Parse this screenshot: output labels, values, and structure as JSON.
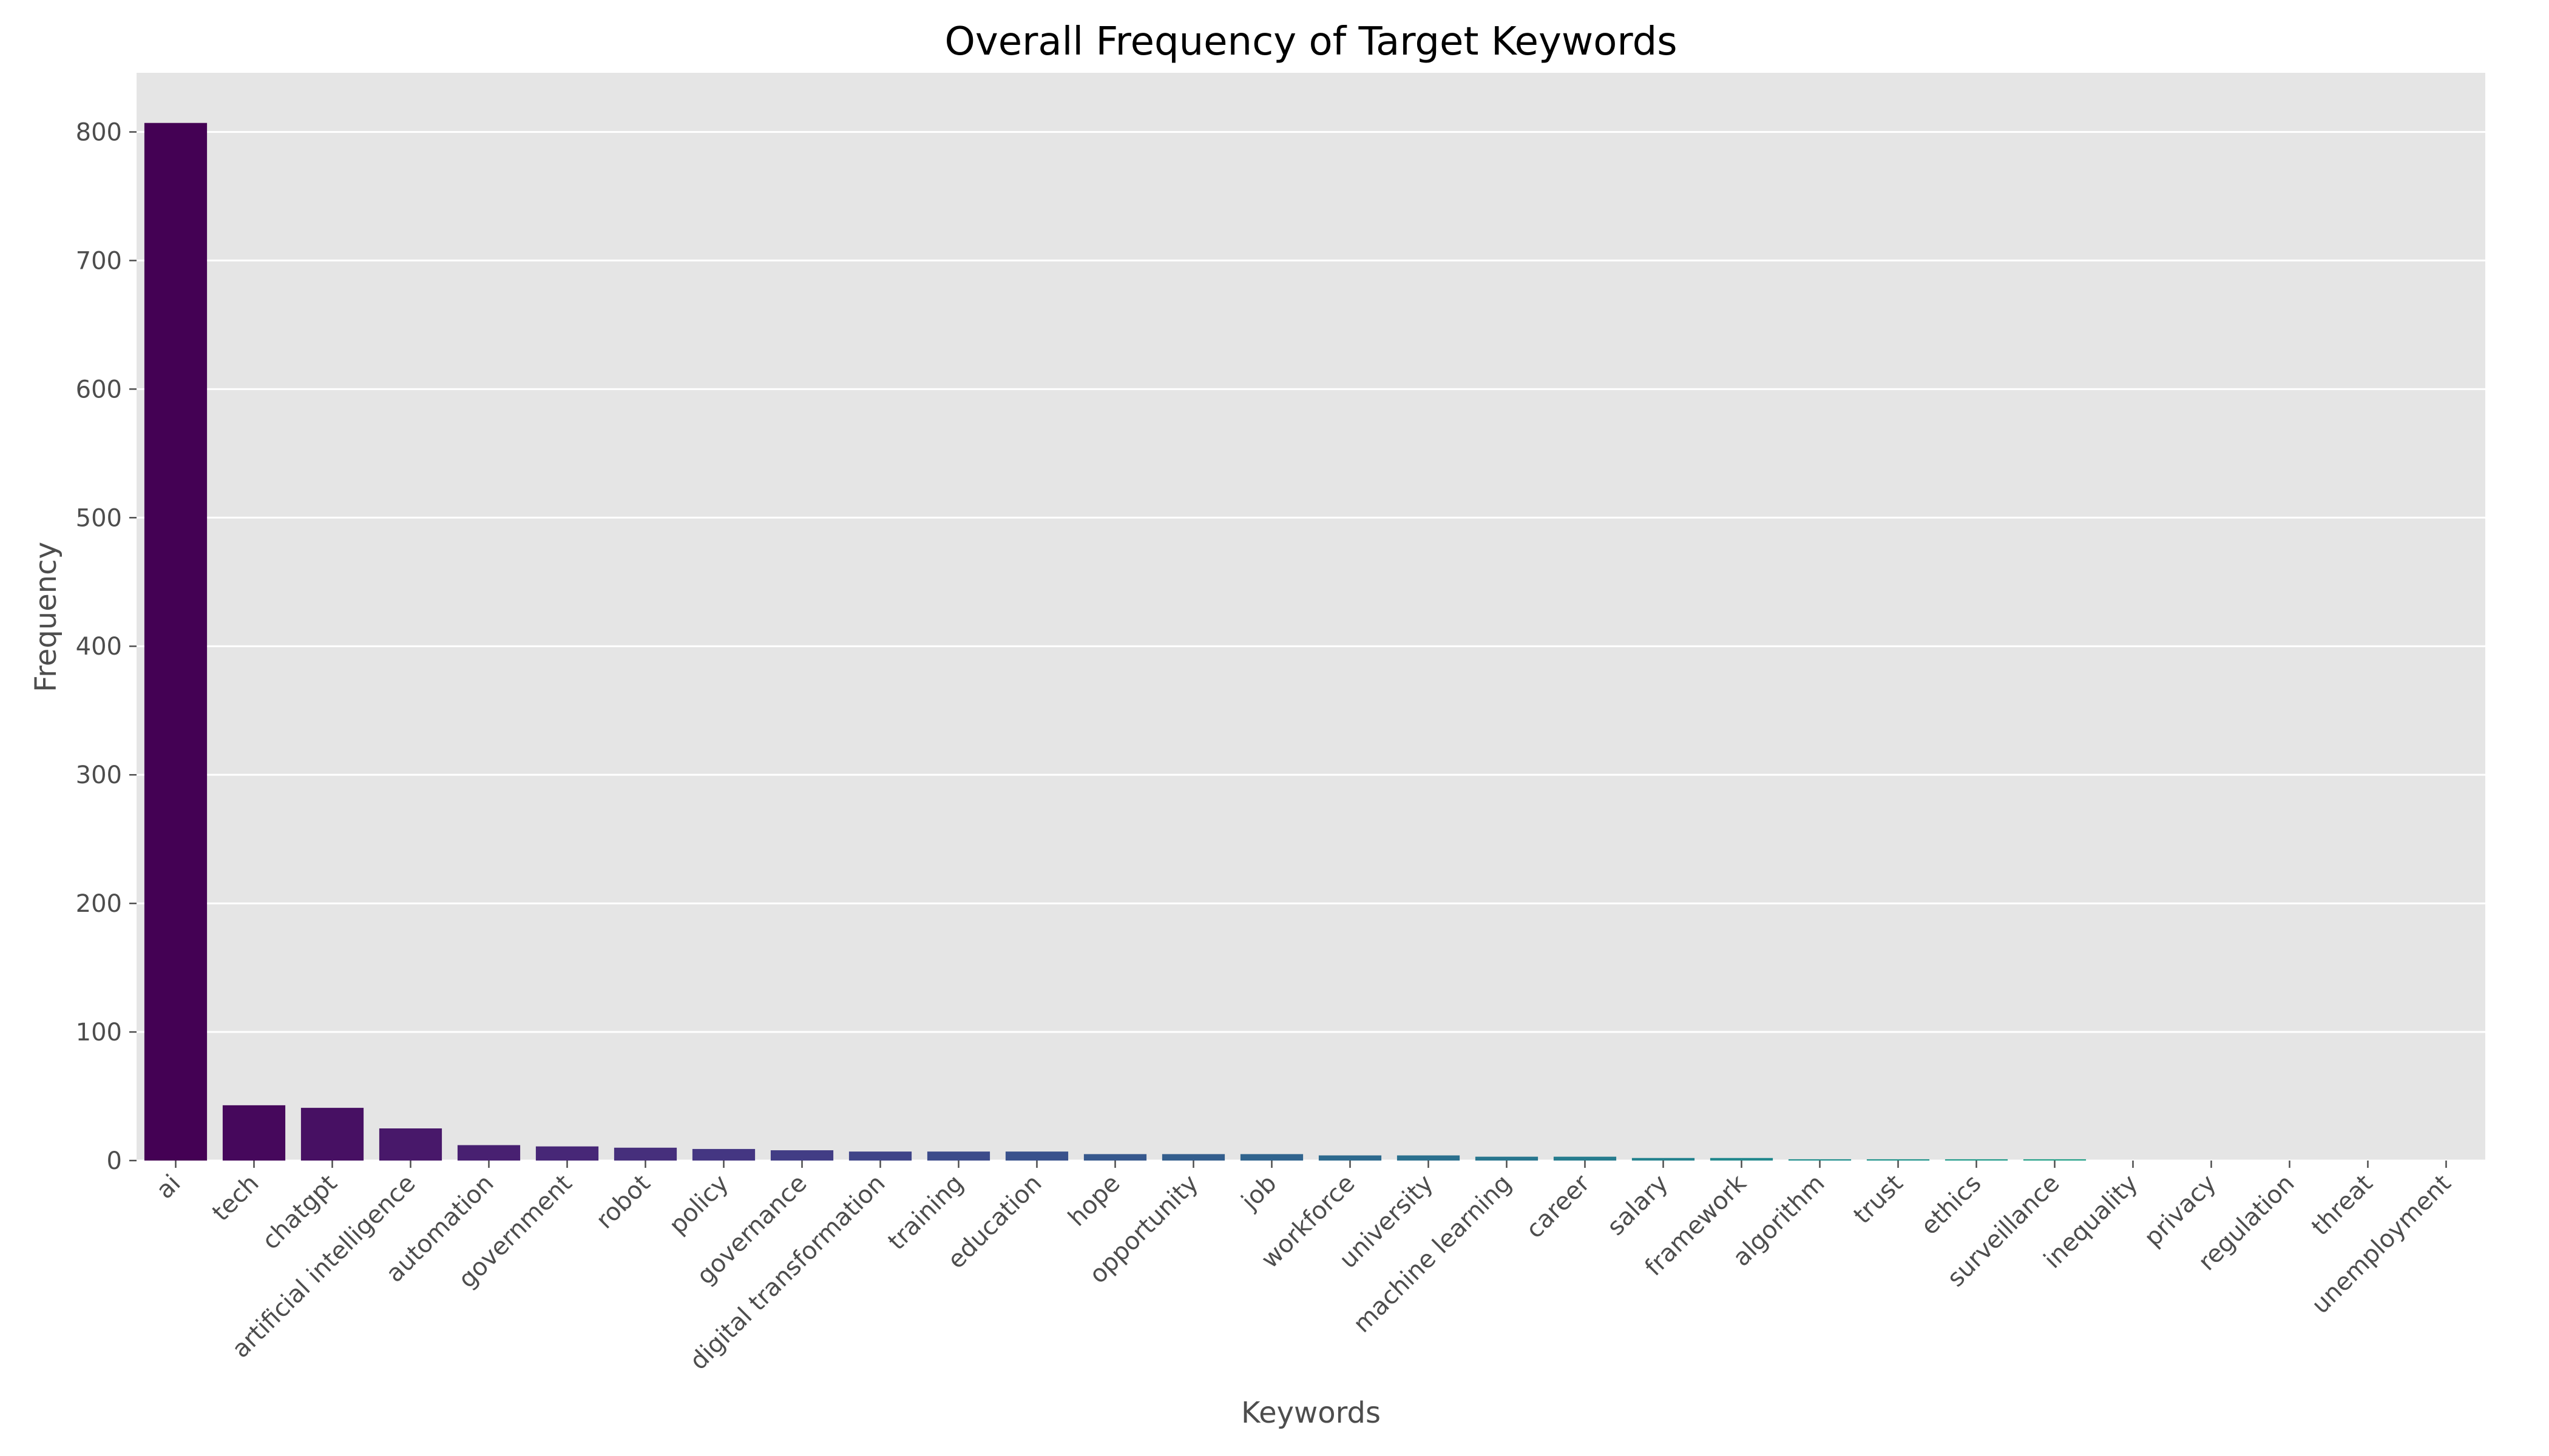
{
  "chart_data": {
    "type": "bar",
    "title": "Overall Frequency of Target Keywords",
    "xlabel": "Keywords",
    "ylabel": "Frequency",
    "ylim": [
      0,
      846
    ],
    "yticks": [
      0,
      100,
      200,
      300,
      400,
      500,
      600,
      700,
      800
    ],
    "grid": true,
    "legend": "none",
    "plot_background": "#e5e5e5",
    "palette": "viridis",
    "categories": [
      "ai",
      "tech",
      "chatgpt",
      "artificial intelligence",
      "automation",
      "government",
      "robot",
      "policy",
      "governance",
      "digital transformation",
      "training",
      "education",
      "hope",
      "opportunity",
      "job",
      "workforce",
      "university",
      "machine learning",
      "career",
      "salary",
      "framework",
      "algorithm",
      "trust",
      "ethics",
      "surveillance",
      "inequality",
      "privacy",
      "regulation",
      "threat",
      "unemployment"
    ],
    "values": [
      807,
      43,
      41,
      25,
      12,
      11,
      10,
      9,
      8,
      7,
      7,
      7,
      5,
      5,
      5,
      4,
      4,
      3,
      3,
      2,
      2,
      1,
      1,
      1,
      1,
      0,
      0,
      0,
      0,
      0
    ],
    "colors": [
      "#440154",
      "#46085c",
      "#471063",
      "#48186a",
      "#482071",
      "#472777",
      "#462f7c",
      "#443682",
      "#423d85",
      "#3f4488",
      "#3c4b8a",
      "#39518c",
      "#36588d",
      "#335e8d",
      "#30648e",
      "#2d6a8e",
      "#2b708e",
      "#28768e",
      "#267c8e",
      "#24828e",
      "#22888d",
      "#208e8c",
      "#1f948b",
      "#1f9a89",
      "#21a086",
      "#26a683",
      "#2eac7e",
      "#38b179",
      "#43b773",
      "#50bc6c"
    ]
  }
}
